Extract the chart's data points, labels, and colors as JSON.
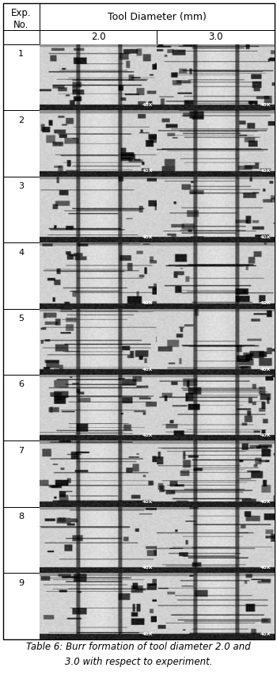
{
  "title_row1": "Tool Diameter (mm)",
  "col1_header": "Exp.\nNo.",
  "col2_header": "2.0",
  "col3_header": "3.0",
  "num_rows": 9,
  "caption_line1": "Table 6: Burr formation of tool diameter 2.0 and",
  "caption_line2": "3.0 with respect to experiment.",
  "bg_color": "#ffffff",
  "border_color": "#000000",
  "fig_width": 3.5,
  "fig_height": 8.52,
  "dpi": 100,
  "caption_fontsize": 8.5,
  "header_fontsize": 9,
  "expno_fontsize": 8
}
